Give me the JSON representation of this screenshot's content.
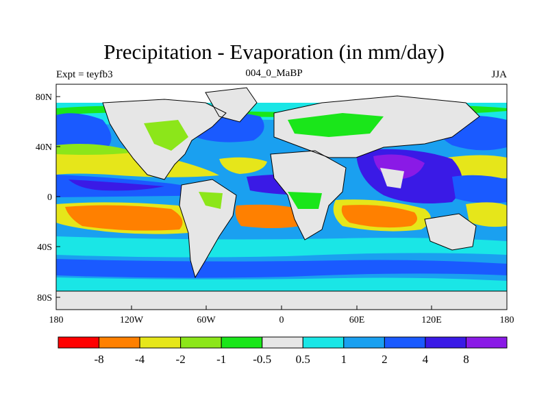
{
  "title": "Precipitation - Evaporation (in mm/day)",
  "left_label": "Expt = teyfb3",
  "center_label": "004_0_MaBP",
  "right_label": "JJA",
  "lat_ticks": [
    "80N",
    "40N",
    "0",
    "40S",
    "80S"
  ],
  "lon_ticks": [
    "180",
    "120W",
    "60W",
    "0",
    "60E",
    "120E",
    "180"
  ],
  "colorbar": {
    "colors": [
      "#ff0000",
      "#ff8000",
      "#e6e61a",
      "#8ce61a",
      "#1ae61a",
      "#e6e6e6",
      "#1ae6e6",
      "#1aa0f0",
      "#1a5aff",
      "#3a1ae6",
      "#8a1ae6"
    ],
    "labels": [
      "-8",
      "-4",
      "-2",
      "-1",
      "-0.5",
      "0.5",
      "1",
      "2",
      "4",
      "8"
    ]
  },
  "palette": {
    "ocean_deep": "#1a5aff",
    "ocean_mid": "#1aa0f0",
    "ocean_light": "#1ae6e6",
    "dry_orange": "#ff8000",
    "dry_yellow": "#e6e61a",
    "lime": "#8ce61a",
    "green": "#1ae61a",
    "neutral": "#e6e6e6",
    "purple": "#8a1ae6",
    "indigo": "#3a1ae6"
  }
}
